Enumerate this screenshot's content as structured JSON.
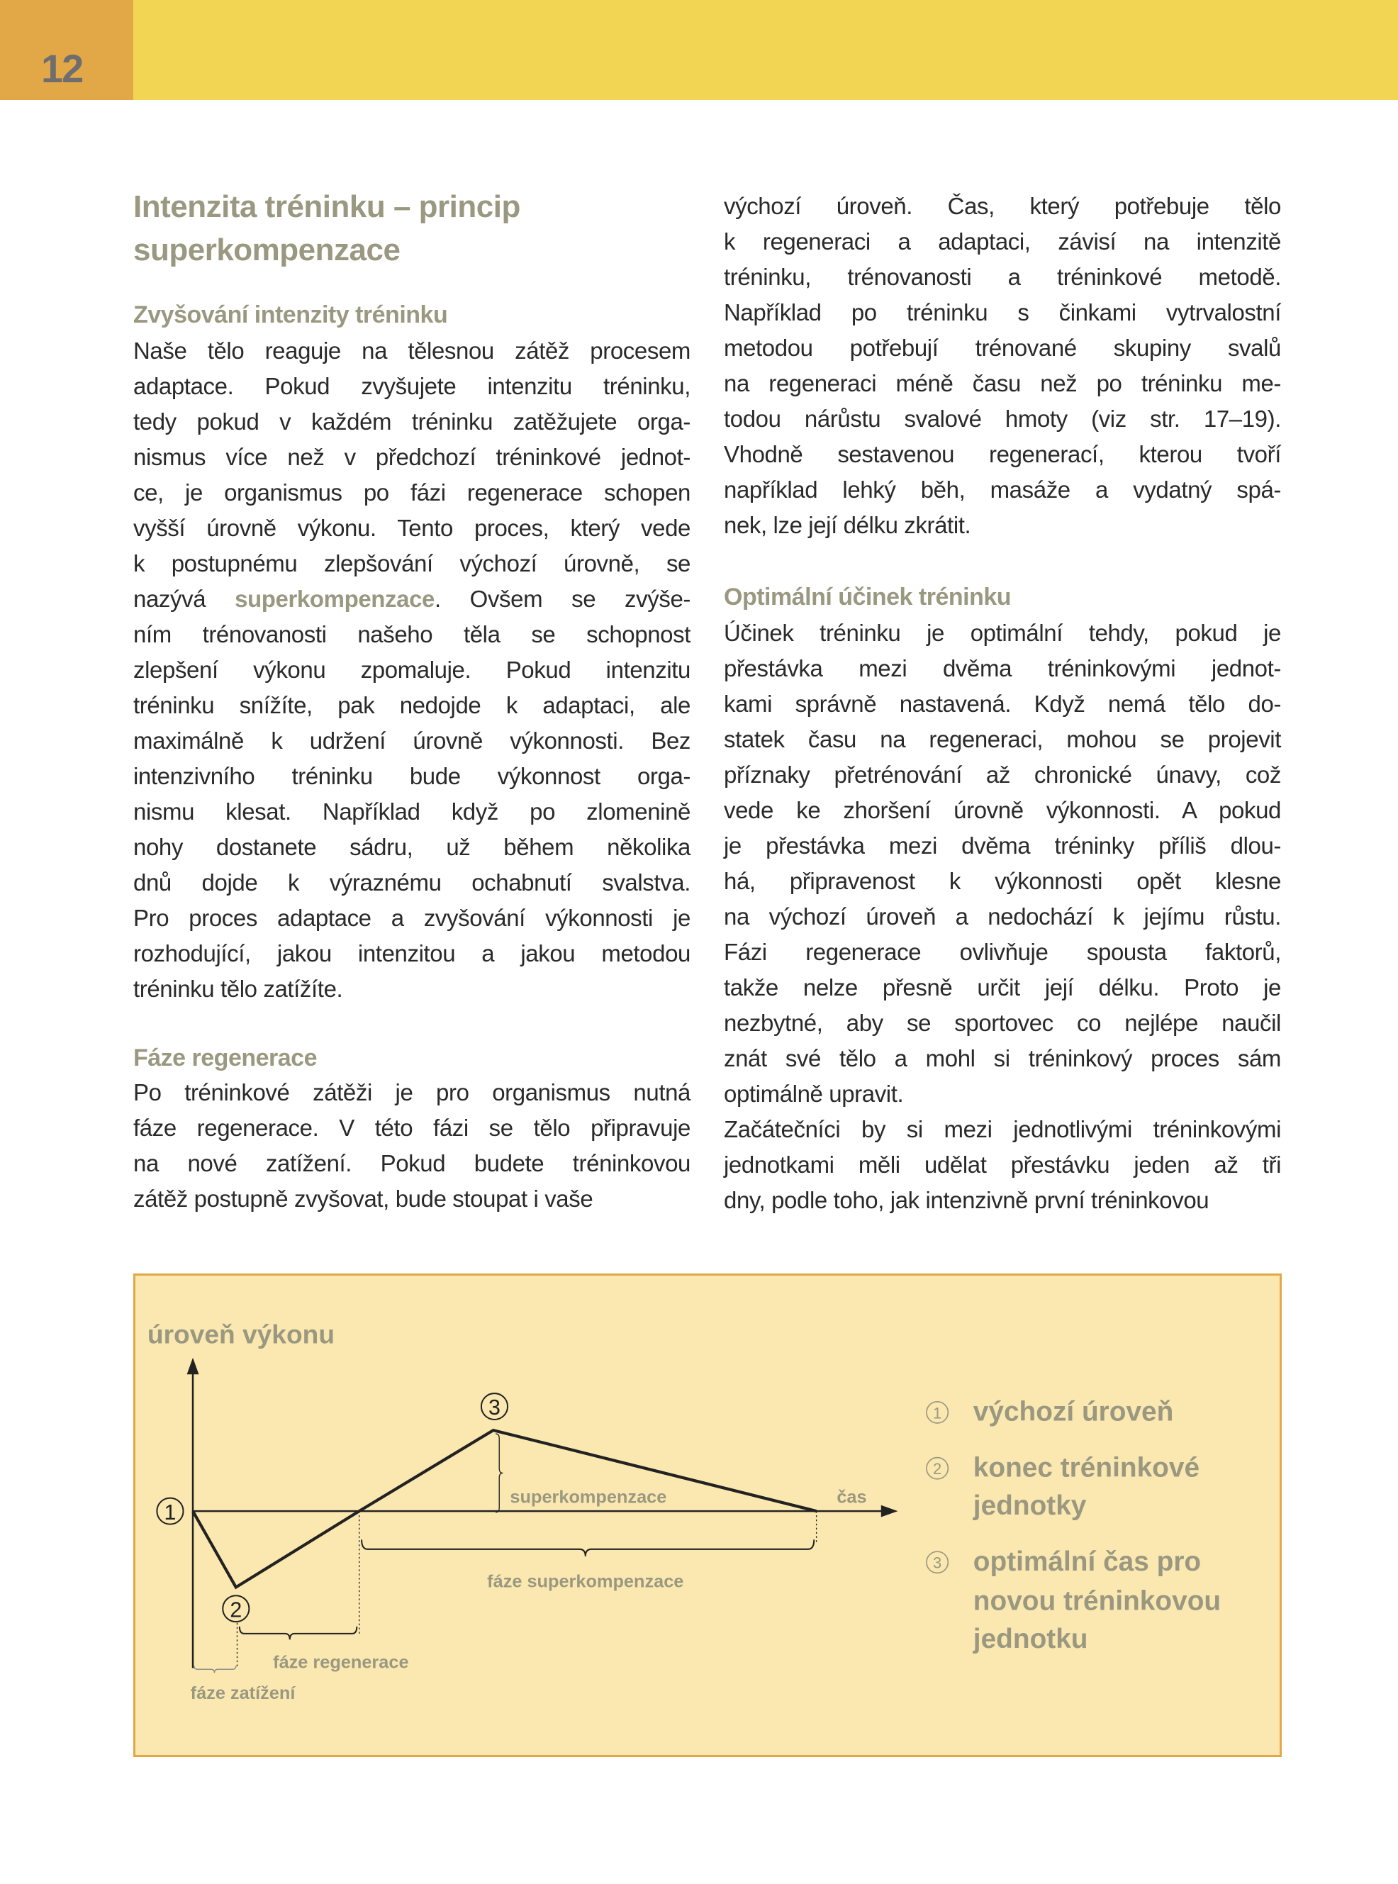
{
  "header": {
    "page_number": "12"
  },
  "title": [
    "Intenzita tréninku – princip",
    "superkompenzace"
  ],
  "left": {
    "h1": "Zvyšování intenzity tréninku",
    "p1": [
      "Naše tělo reaguje na tělesnou zátěž procesem",
      "adaptace. Pokud zvyšujete intenzitu tréninku,",
      "tedy pokud v každém tréninku zatěžujete orga-",
      "nismus více než v předchozí tréninkové jednot-",
      "ce, je organismus po fázi regenerace schopen",
      "vyšší úrovně výkonu. Tento proces, který vede",
      "k postupnému zlepšování výchozí úrovně, se",
      "nazývá |superkompenzace|. Ovšem se zvýše-",
      "ním trénovanosti našeho těla se schopnost",
      "zlepšení výkonu zpomaluje. Pokud intenzitu",
      "tréninku snížíte, pak nedojde k adaptaci, ale",
      "maximálně k udržení úrovně výkonnosti. Bez",
      "intenzivního tréninku bude výkonnost orga-",
      "nismu klesat. Například když po zlomenině",
      "nohy dostanete sádru, už během několika",
      "dnů dojde k výraznému ochabnutí svalstva.",
      "Pro proces adaptace a zvyšování výkonnosti je",
      "rozhodující, jakou intenzitou a jakou metodou",
      "tréninku tělo zatížíte."
    ],
    "h2": "Fáze regenerace",
    "p2": [
      "Po tréninkové zátěži je pro organismus nutná",
      "fáze regenerace. V této fázi se tělo připravuje",
      "na nové zatížení. Pokud budete tréninkovou",
      "zátěž postupně zvyšovat, bude stoupat i vaše"
    ]
  },
  "right": {
    "p1": [
      "výchozí úroveň. Čas, který potřebuje tělo",
      "k regeneraci a adaptaci, závisí na intenzitě",
      "tréninku, trénovanosti a tréninkové metodě.",
      "Například po tréninku s činkami vytrvalostní",
      "metodou potřebují trénované skupiny svalů",
      "na regeneraci méně času než po tréninku me-",
      "todou nárůstu svalové hmoty (viz str. 17–19).",
      "Vhodně sestavenou regenerací, kterou tvoří",
      "například lehký běh, masáže a vydatný spá-",
      "nek, lze její délku zkrátit."
    ],
    "h1": "Optimální účinek tréninku",
    "p2": [
      "Účinek tréninku je optimální tehdy, pokud je",
      "přestávka mezi dvěma tréninkovými jednot-",
      "kami správně nastavená. Když nemá tělo do-",
      "statek času na regeneraci, mohou se projevit",
      "příznaky přetrénování až chronické únavy, což",
      "vede ke zhoršení úrovně výkonnosti. A pokud",
      "je přestávka mezi dvěma tréninky příliš dlou-",
      "há, připravenost k výkonnosti opět klesne",
      "na výchozí úroveň a nedochází k jejímu růstu.",
      "Fázi regenerace ovlivňuje spousta faktorů,",
      "takže nelze přesně určit její délku. Proto je",
      "nezbytné, aby se sportovec co nejlépe naučil",
      "znát své tělo a mohl si tréninkový proces sám",
      "optimálně upravit."
    ],
    "p3": [
      "Začátečníci by si mezi jednotlivými tréninkovými",
      "jednotkami měli udělat přestávku jeden až tři",
      "dny, podle toho, jak intenzivně první tréninkovou"
    ]
  },
  "diagram": {
    "y_label": "úroveň výkonu",
    "x_label": "čas",
    "markers": [
      "①",
      "②",
      "③"
    ],
    "superkompenzace": "superkompenzace",
    "phase_load": "fáze zatížení",
    "phase_regeneration": "fáze regenerace",
    "phase_supercompensation": "fáze superkompenzace",
    "legend": [
      {
        "marker": "①",
        "lines": [
          "výchozí úroveň"
        ]
      },
      {
        "marker": "②",
        "lines": [
          "konec tréninkové",
          "jednotky"
        ]
      },
      {
        "marker": "③",
        "lines": [
          "optimální čas pro",
          "novou tréninkovou",
          "jednotku"
        ]
      }
    ]
  },
  "colors": {
    "header_yellow": "#F2D653",
    "page_tab_orange": "#E2A848",
    "heading_olive": "#9A9880",
    "box_fill": "#FBE8B0"
  }
}
